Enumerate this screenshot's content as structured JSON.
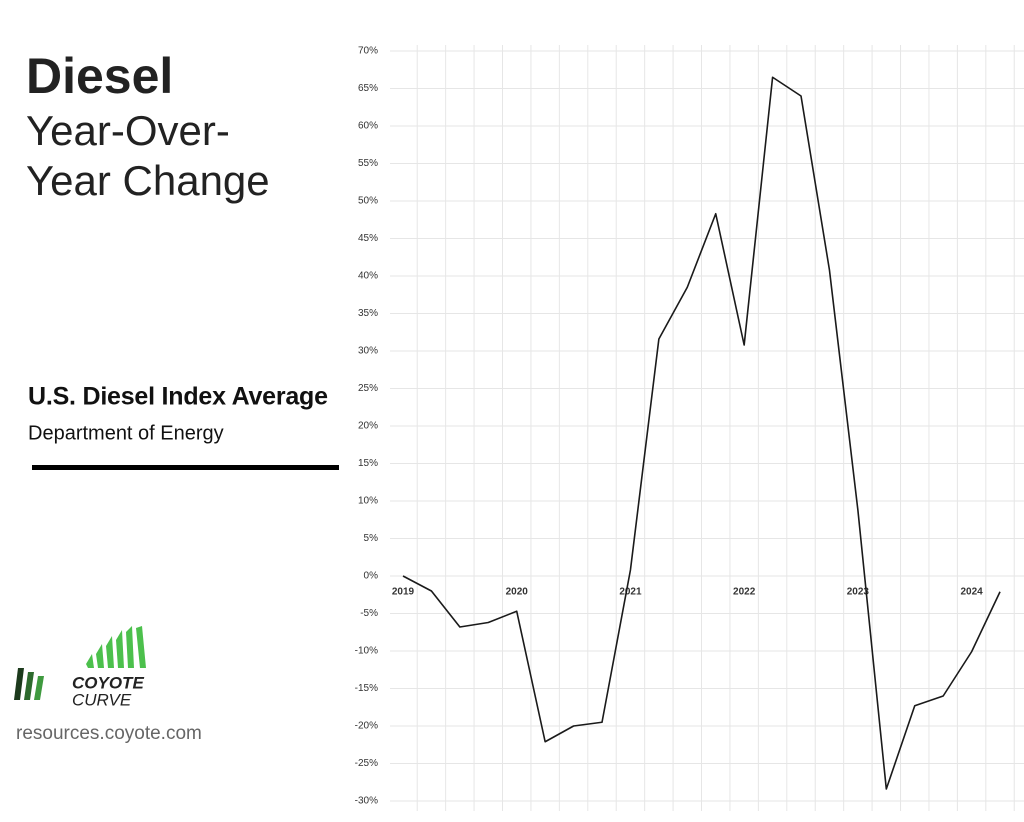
{
  "chart_data": {
    "type": "line",
    "title": "Diesel",
    "subtitle_lines": [
      "Year-Over-",
      "Year Change"
    ],
    "series_title": "U.S. Diesel Index Average",
    "source": "Department of Energy",
    "logo_lines": [
      "COYOTE",
      "CURVE"
    ],
    "url": "resources.coyote.com",
    "categories": [
      "2019",
      null,
      null,
      null,
      "2020",
      null,
      null,
      null,
      "2021",
      null,
      null,
      null,
      "2022",
      null,
      null,
      null,
      "2023",
      null,
      null,
      null,
      "2024",
      null
    ],
    "series": [
      {
        "color": "#1a1a1a",
        "values": [
          0,
          -2,
          -6.8,
          -6.2,
          -4.7,
          -22.1,
          -20,
          -19.5,
          0.8,
          31.6,
          38.5,
          48.3,
          30.8,
          66.5,
          64,
          40.8,
          8.8,
          -28.4,
          -17.3,
          -16,
          -10.1,
          -2.1
        ]
      }
    ],
    "ylim": [
      -30,
      70
    ],
    "yticks": [
      {
        "value": -30,
        "label": "-30%"
      },
      {
        "value": -25,
        "label": "-25%"
      },
      {
        "value": -20,
        "label": "-20%"
      },
      {
        "value": -15,
        "label": "-15%"
      },
      {
        "value": -10,
        "label": "-10%"
      },
      {
        "value": -5,
        "label": "-5%"
      },
      {
        "value": 0,
        "label": "0%"
      },
      {
        "value": 5,
        "label": "5%"
      },
      {
        "value": 10,
        "label": "10%"
      },
      {
        "value": 15,
        "label": "15%"
      },
      {
        "value": 20,
        "label": "20%"
      },
      {
        "value": 25,
        "label": "25%"
      },
      {
        "value": 30,
        "label": "30%"
      },
      {
        "value": 35,
        "label": "35%"
      },
      {
        "value": 40,
        "label": "40%"
      },
      {
        "value": 45,
        "label": "45%"
      },
      {
        "value": 50,
        "label": "50%"
      },
      {
        "value": 55,
        "label": "55%"
      },
      {
        "value": 60,
        "label": "60%"
      },
      {
        "value": 65,
        "label": "65%"
      },
      {
        "value": 70,
        "label": "70%"
      }
    ],
    "grid": true
  }
}
